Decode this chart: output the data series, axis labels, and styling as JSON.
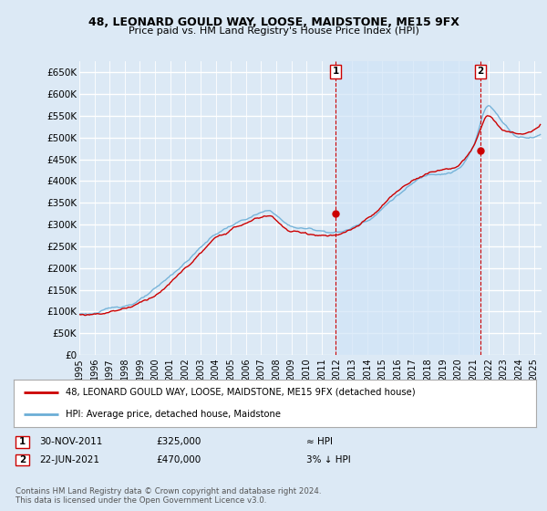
{
  "title": "48, LEONARD GOULD WAY, LOOSE, MAIDSTONE, ME15 9FX",
  "subtitle": "Price paid vs. HM Land Registry's House Price Index (HPI)",
  "bg_color": "#dce9f5",
  "plot_bg_color": "#dce9f5",
  "grid_color": "#ffffff",
  "shaded_region_color": "#d0e4f7",
  "ylim": [
    0,
    675000
  ],
  "yticks": [
    0,
    50000,
    100000,
    150000,
    200000,
    250000,
    300000,
    350000,
    400000,
    450000,
    500000,
    550000,
    600000,
    650000
  ],
  "xlim_start": 1995.0,
  "xlim_end": 2025.5,
  "legend_line1": "48, LEONARD GOULD WAY, LOOSE, MAIDSTONE, ME15 9FX (detached house)",
  "legend_line2": "HPI: Average price, detached house, Maidstone",
  "marker1_date": "30-NOV-2011",
  "marker1_price": "£325,000",
  "marker1_rel": "≈ HPI",
  "marker2_date": "22-JUN-2021",
  "marker2_price": "£470,000",
  "marker2_rel": "3% ↓ HPI",
  "footer": "Contains HM Land Registry data © Crown copyright and database right 2024.\nThis data is licensed under the Open Government Licence v3.0.",
  "sale1_x": 2011.92,
  "sale1_y": 325000,
  "sale2_x": 2021.47,
  "sale2_y": 470000,
  "hpi_color": "#6baed6",
  "price_color": "#cc0000"
}
